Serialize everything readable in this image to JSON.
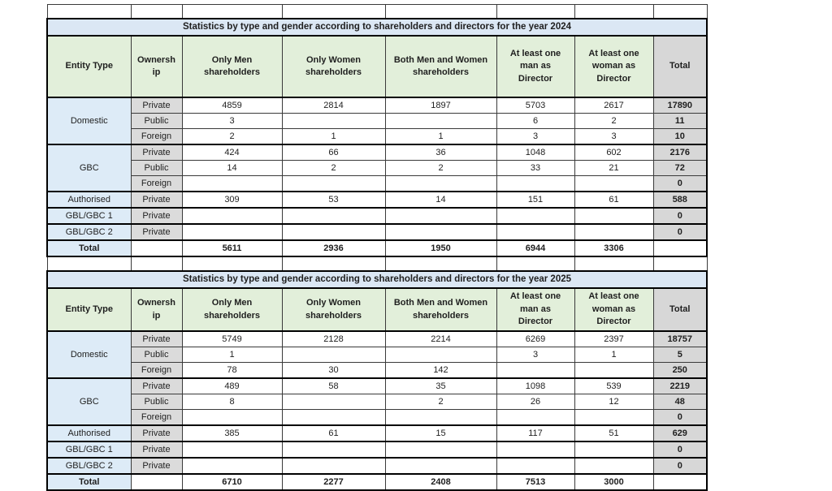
{
  "colors": {
    "title_bg": "#DBE7F4",
    "header_bg": "#E2EFDA",
    "entity_bg": "#DDEBF7",
    "ownership_bg": "#DBDBDB",
    "total_col_bg": "#D7D7D7",
    "text": "#1F1F1F",
    "border_thin": "#3a3a3a",
    "border_thick": "#000000"
  },
  "tables": [
    {
      "title": "Statistics by type and gender according to shareholders and directors for the year 2024",
      "columns": [
        "Entity Type",
        "Ownership",
        "Only Men shareholders",
        "Only Women shareholders",
        "Both Men and Women shareholders",
        "At least one man as Director",
        "At least one woman as Director",
        "Total"
      ],
      "groups": [
        {
          "entity": "Domestic",
          "rows": [
            {
              "ownership": "Private",
              "values": [
                "4859",
                "2814",
                "1897",
                "5703",
                "2617"
              ],
              "total": "17890"
            },
            {
              "ownership": "Public",
              "values": [
                "3",
                "",
                "",
                "6",
                "2"
              ],
              "total": "11"
            },
            {
              "ownership": "Foreign",
              "values": [
                "2",
                "1",
                "1",
                "3",
                "3"
              ],
              "total": "10"
            }
          ]
        },
        {
          "entity": "GBC",
          "rows": [
            {
              "ownership": "Private",
              "values": [
                "424",
                "66",
                "36",
                "1048",
                "602"
              ],
              "total": "2176"
            },
            {
              "ownership": "Public",
              "values": [
                "14",
                "2",
                "2",
                "33",
                "21"
              ],
              "total": "72"
            },
            {
              "ownership": "Foreign",
              "values": [
                "",
                "",
                "",
                "",
                ""
              ],
              "total": "0"
            }
          ]
        },
        {
          "entity": "Authorised",
          "rows": [
            {
              "ownership": "Private",
              "values": [
                "309",
                "53",
                "14",
                "151",
                "61"
              ],
              "total": "588"
            }
          ]
        },
        {
          "entity": "GBL/GBC 1",
          "rows": [
            {
              "ownership": "Private",
              "values": [
                "",
                "",
                "",
                "",
                ""
              ],
              "total": "0"
            }
          ]
        },
        {
          "entity": "GBL/GBC 2",
          "rows": [
            {
              "ownership": "Private",
              "values": [
                "",
                "",
                "",
                "",
                ""
              ],
              "total": "0"
            }
          ]
        }
      ],
      "total_row": {
        "label": "Total",
        "values": [
          "5611",
          "2936",
          "1950",
          "6944",
          "3306"
        ],
        "total": ""
      }
    },
    {
      "title": "Statistics by type and gender according to shareholders and directors for the year 2025",
      "columns": [
        "Entity Type",
        "Ownership",
        "Only Men shareholders",
        "Only Women shareholders",
        "Both Men and Women shareholders",
        "At least one man as Director",
        "At least one woman as Director",
        "Total"
      ],
      "groups": [
        {
          "entity": "Domestic",
          "rows": [
            {
              "ownership": "Private",
              "values": [
                "5749",
                "2128",
                "2214",
                "6269",
                "2397"
              ],
              "total": "18757"
            },
            {
              "ownership": "Public",
              "values": [
                "1",
                "",
                "",
                "3",
                "1"
              ],
              "total": "5"
            },
            {
              "ownership": "Foreign",
              "values": [
                "78",
                "30",
                "142",
                "",
                ""
              ],
              "total": "250"
            }
          ]
        },
        {
          "entity": "GBC",
          "rows": [
            {
              "ownership": "Private",
              "values": [
                "489",
                "58",
                "35",
                "1098",
                "539"
              ],
              "total": "2219"
            },
            {
              "ownership": "Public",
              "values": [
                "8",
                "",
                "2",
                "26",
                "12"
              ],
              "total": "48"
            },
            {
              "ownership": "Foreign",
              "values": [
                "",
                "",
                "",
                "",
                ""
              ],
              "total": "0"
            }
          ]
        },
        {
          "entity": "Authorised",
          "rows": [
            {
              "ownership": "Private",
              "values": [
                "385",
                "61",
                "15",
                "117",
                "51"
              ],
              "total": "629"
            }
          ]
        },
        {
          "entity": "GBL/GBC 1",
          "rows": [
            {
              "ownership": "Private",
              "values": [
                "",
                "",
                "",
                "",
                ""
              ],
              "total": "0"
            }
          ]
        },
        {
          "entity": "GBL/GBC 2",
          "rows": [
            {
              "ownership": "Private",
              "values": [
                "",
                "",
                "",
                "",
                ""
              ],
              "total": "0"
            }
          ]
        }
      ],
      "total_row": {
        "label": "Total",
        "values": [
          "6710",
          "2277",
          "2408",
          "7513",
          "3000"
        ],
        "total": ""
      }
    }
  ]
}
